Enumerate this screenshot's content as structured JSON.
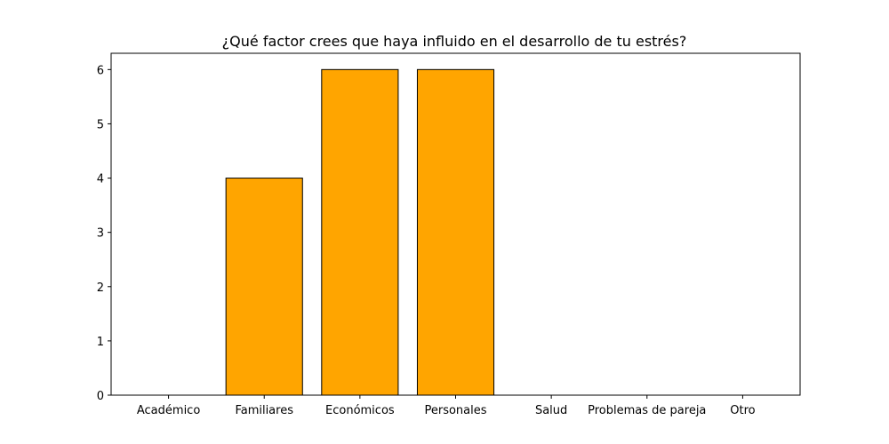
{
  "chart_data": {
    "type": "bar",
    "title": "¿Qué factor crees que haya influido en el desarrollo de tu estrés?",
    "xlabel": "",
    "ylabel": "",
    "categories": [
      "Académico",
      "Familiares",
      "Económicos",
      "Personales",
      "Salud",
      "Problemas de pareja",
      "Otro"
    ],
    "values": [
      0,
      4,
      6,
      6,
      0,
      0,
      0
    ],
    "ylim": [
      0,
      6.3
    ],
    "yticks": [
      0,
      1,
      2,
      3,
      4,
      5,
      6
    ],
    "bar_color": "#FFA500",
    "edge_color": "#000000",
    "grid": false,
    "legend": "none"
  }
}
